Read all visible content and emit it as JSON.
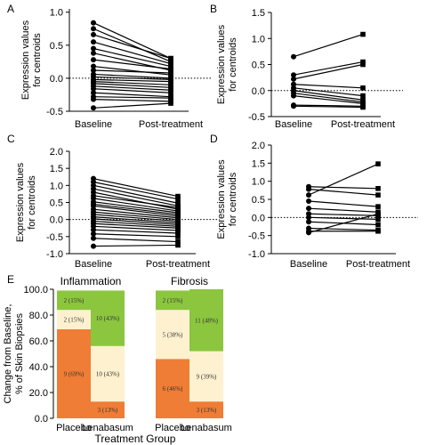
{
  "chart_data": [
    {
      "panel": "A",
      "type": "line",
      "ylabel": "Expression values\nfor centroids",
      "categories": [
        "Baseline",
        "Post-treatment"
      ],
      "yticks": [
        "-0.5",
        "0.0",
        "0.5",
        "1.0"
      ],
      "ylim": [
        -0.5,
        1.05
      ],
      "reference_line": 0,
      "pairs": [
        [
          0.84,
          0.3
        ],
        [
          0.75,
          0.25
        ],
        [
          0.66,
          0.3
        ],
        [
          0.55,
          0.22
        ],
        [
          0.45,
          0.18
        ],
        [
          0.38,
          0.12
        ],
        [
          0.28,
          0.14
        ],
        [
          0.18,
          0.05
        ],
        [
          0.12,
          0.08
        ],
        [
          0.06,
          0.0
        ],
        [
          -0.02,
          -0.05
        ],
        [
          -0.05,
          -0.1
        ],
        [
          -0.08,
          -0.14
        ],
        [
          -0.12,
          -0.18
        ],
        [
          -0.16,
          -0.22
        ],
        [
          -0.22,
          -0.28
        ],
        [
          -0.28,
          -0.3
        ],
        [
          -0.32,
          -0.35
        ],
        [
          -0.45,
          -0.38
        ],
        [
          0.02,
          -0.02
        ]
      ]
    },
    {
      "panel": "B",
      "type": "line",
      "ylabel": "Expression values\nfor centroids",
      "categories": [
        "Baseline",
        "Post-treatment"
      ],
      "yticks": [
        "-0.5",
        "0.0",
        "0.5",
        "1.0",
        "1.5"
      ],
      "ylim": [
        -0.5,
        1.5
      ],
      "reference_line": 0,
      "pairs": [
        [
          0.65,
          1.08
        ],
        [
          0.3,
          0.55
        ],
        [
          0.22,
          0.5
        ],
        [
          0.12,
          0.05
        ],
        [
          0.05,
          -0.1
        ],
        [
          0.0,
          -0.18
        ],
        [
          -0.05,
          -0.22
        ],
        [
          -0.1,
          -0.25
        ],
        [
          -0.28,
          -0.3
        ],
        [
          -0.3,
          -0.32
        ]
      ]
    },
    {
      "panel": "C",
      "type": "line",
      "ylabel": "Expression values\nfor centroids",
      "categories": [
        "Baseline",
        "Post-treatment"
      ],
      "yticks": [
        "-1.0",
        "-0.5",
        "0.0",
        "0.5",
        "1.0",
        "1.5",
        "2.0"
      ],
      "ylim": [
        -1.0,
        2.0
      ],
      "reference_line": 0,
      "pairs": [
        [
          1.2,
          0.68
        ],
        [
          1.1,
          0.6
        ],
        [
          1.0,
          0.48
        ],
        [
          0.9,
          0.4
        ],
        [
          0.8,
          0.3
        ],
        [
          0.7,
          0.35
        ],
        [
          0.62,
          0.25
        ],
        [
          0.52,
          0.2
        ],
        [
          0.45,
          0.15
        ],
        [
          0.4,
          0.1
        ],
        [
          0.3,
          0.05
        ],
        [
          0.22,
          0.0
        ],
        [
          0.15,
          -0.05
        ],
        [
          0.08,
          -0.1
        ],
        [
          0.02,
          -0.15
        ],
        [
          -0.05,
          -0.2
        ],
        [
          -0.12,
          -0.25
        ],
        [
          -0.2,
          -0.32
        ],
        [
          -0.3,
          -0.4
        ],
        [
          -0.42,
          -0.5
        ],
        [
          -0.55,
          -0.65
        ],
        [
          -0.78,
          -0.75
        ]
      ]
    },
    {
      "panel": "D",
      "type": "line",
      "ylabel": "Expression values\nfor centroids",
      "categories": [
        "Baseline",
        "Post-treatment"
      ],
      "yticks": [
        "-1.0",
        "-0.5",
        "0.0",
        "0.5",
        "1.0",
        "1.5",
        "2.0"
      ],
      "ylim": [
        -1.0,
        2.0
      ],
      "reference_line": 0,
      "pairs": [
        [
          0.85,
          0.8
        ],
        [
          0.78,
          0.62
        ],
        [
          0.62,
          1.48
        ],
        [
          0.45,
          0.3
        ],
        [
          0.25,
          0.15
        ],
        [
          0.1,
          0.05
        ],
        [
          0.0,
          -0.05
        ],
        [
          -0.12,
          -0.2
        ],
        [
          -0.3,
          -0.35
        ],
        [
          -0.38,
          -0.38
        ],
        [
          -0.42,
          0.1
        ]
      ]
    },
    {
      "panel": "E",
      "type": "bar",
      "stacked": true,
      "ylabel": "Change from Baseline,\n% of Skin Biopsies",
      "xlabel": "Treatment Group",
      "yticks": [
        "0.0",
        "20.0",
        "40.0",
        "60.0",
        "80.0",
        "100.0"
      ],
      "ylim": [
        0,
        100
      ],
      "colors": {
        "orange": "#ef7d35",
        "cream": "#fdf1cf",
        "green": "#8cc63f"
      },
      "groups": [
        {
          "title": "Inflammation",
          "bars": [
            {
              "label": "Placebo",
              "segments": [
                {
                  "value": 69,
                  "color": "orange",
                  "text": "9 (69%)"
                },
                {
                  "value": 15,
                  "color": "cream",
                  "text": "2 (15%)"
                },
                {
                  "value": 15,
                  "color": "green",
                  "text": "2 (15%)"
                }
              ]
            },
            {
              "label": "Lenabasum",
              "segments": [
                {
                  "value": 13,
                  "color": "orange",
                  "text": "3 (13%)"
                },
                {
                  "value": 43,
                  "color": "cream",
                  "text": "10 (43%)"
                },
                {
                  "value": 43,
                  "color": "green",
                  "text": "10 (43%)"
                }
              ]
            }
          ]
        },
        {
          "title": "Fibrosis",
          "bars": [
            {
              "label": "Placebo",
              "segments": [
                {
                  "value": 46,
                  "color": "orange",
                  "text": "6 (46%)"
                },
                {
                  "value": 38,
                  "color": "cream",
                  "text": "5 (38%)"
                },
                {
                  "value": 15,
                  "color": "green",
                  "text": "2 (15%)"
                }
              ]
            },
            {
              "label": "Lenabasum",
              "segments": [
                {
                  "value": 13,
                  "color": "orange",
                  "text": "3 (13%)"
                },
                {
                  "value": 39,
                  "color": "cream",
                  "text": "9 (39%)"
                },
                {
                  "value": 48,
                  "color": "green",
                  "text": "11 (48%)"
                }
              ]
            }
          ]
        }
      ]
    }
  ]
}
